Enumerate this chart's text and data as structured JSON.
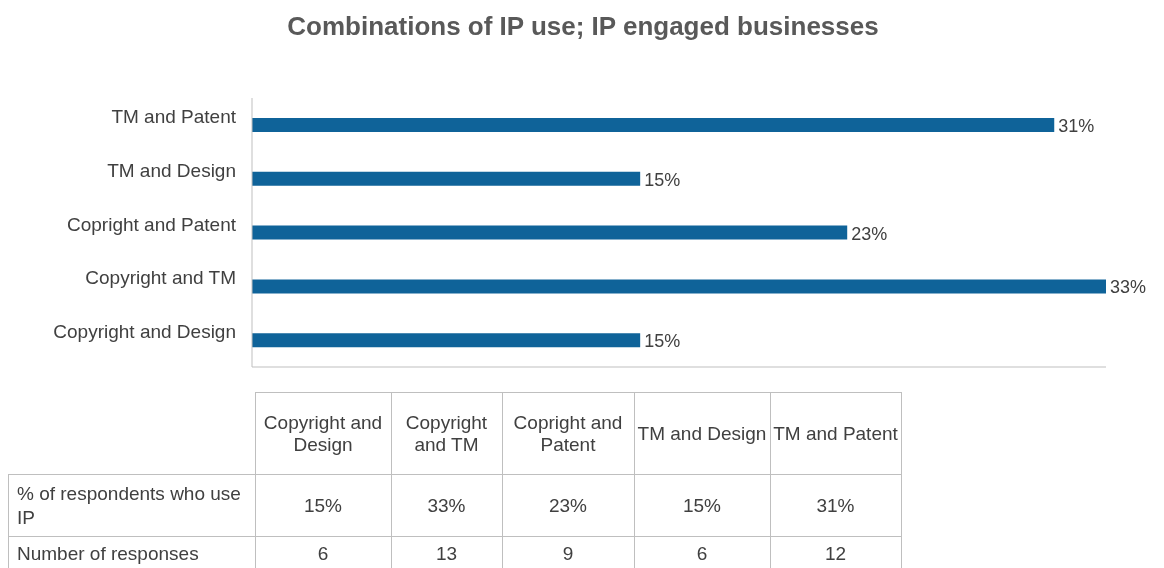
{
  "chart_data": {
    "type": "bar",
    "orientation": "horizontal",
    "title": "Combinations of IP use; IP engaged businesses",
    "categories": [
      "TM and Patent",
      "TM and Design",
      "Copright and Patent",
      "Copyright and TM",
      "Copyright and Design"
    ],
    "series": [
      {
        "name": "% of respondents who use IP",
        "color": "#0f6399",
        "values": [
          31,
          15,
          23,
          33,
          15
        ],
        "value_labels": [
          "31%",
          "15%",
          "23%",
          "33%",
          "15%"
        ]
      }
    ],
    "annotations": [
      "Number of responses",
      "12",
      "6",
      "9",
      "13",
      "6"
    ],
    "legend": false
  }
}
